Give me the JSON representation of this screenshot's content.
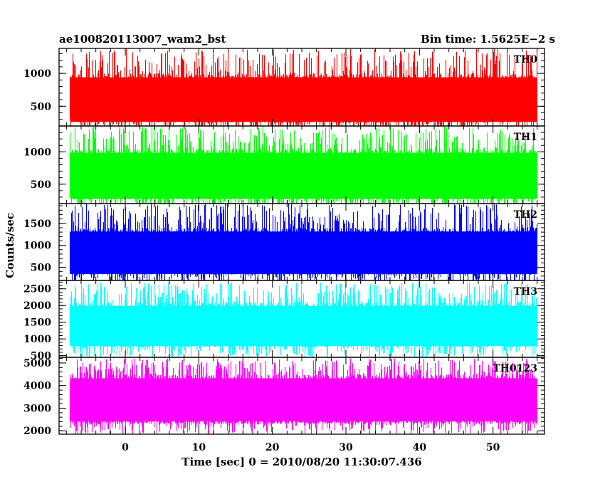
{
  "header": {
    "left_title": "ae100820113007_wam2_bst",
    "right_title": "Bin time: 1.5625E−2 s"
  },
  "chart_data": {
    "type": "line",
    "title": "ae100820113007_wam2_bst",
    "subtitle": "Bin time: 1.5625E−2 s",
    "xlabel": "Time [sec] 0 = 2010/08/20 11:30:07.436",
    "ylabel": "Counts/sec",
    "xlim": [
      -9,
      57
    ],
    "data_x_range": [
      -7.5,
      56.0
    ],
    "bin_time": 0.015625,
    "x_ticks": [
      0,
      10,
      20,
      30,
      40,
      50
    ],
    "grid": false,
    "legend": "none",
    "panels": [
      {
        "name": "TH0",
        "color": "#ff0000",
        "ylim": [
          200,
          1380
        ],
        "y_ticks": [
          500,
          1000
        ],
        "y_tick_labels": [
          "500",
          "1000"
        ],
        "typical_low": 250,
        "typical_high": 1000,
        "peak_max": 1380,
        "trough_min": 80
      },
      {
        "name": "TH1",
        "color": "#00ff00",
        "ylim": [
          200,
          1400
        ],
        "y_ticks": [
          500,
          1000
        ],
        "y_tick_labels": [
          "500",
          "1000"
        ],
        "typical_low": 260,
        "typical_high": 1050,
        "peak_max": 1400,
        "trough_min": 80
      },
      {
        "name": "TH2",
        "color": "#0000ff",
        "ylim": [
          200,
          1950
        ],
        "y_ticks": [
          500,
          1000,
          1500
        ],
        "y_tick_labels": [
          "500",
          "1000",
          "1500"
        ],
        "typical_low": 330,
        "typical_high": 1400,
        "peak_max": 1950,
        "trough_min": 100
      },
      {
        "name": "TH3",
        "color": "#00ffff",
        "ylim": [
          450,
          2750
        ],
        "y_ticks": [
          500,
          1000,
          1500,
          2000,
          2500
        ],
        "y_tick_labels": [
          "500",
          "1000",
          "1500",
          "2000",
          "2500"
        ],
        "typical_low": 750,
        "typical_high": 2100,
        "peak_max": 2700,
        "trough_min": 450
      },
      {
        "name": "TH0123",
        "color": "#ff00ff",
        "ylim": [
          1850,
          5250
        ],
        "y_ticks": [
          2000,
          3000,
          4000,
          5000
        ],
        "y_tick_labels": [
          "2000",
          "3000",
          "4000",
          "5000"
        ],
        "typical_low": 2300,
        "typical_high": 4500,
        "peak_max": 5200,
        "trough_min": 1850
      }
    ]
  }
}
